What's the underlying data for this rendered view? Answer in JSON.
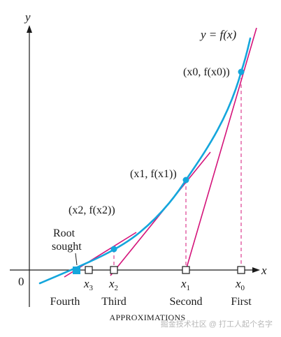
{
  "colors": {
    "curve": "#14a6dc",
    "tangent": "#d4147a",
    "dashed": "#d4147a",
    "axis": "#1a1a1a",
    "text": "#1a1a1a",
    "watermark": "#b8b8b8"
  },
  "labels": {
    "y_axis": "y",
    "x_axis": "x",
    "origin": "0",
    "curve_label": "y = f(x)",
    "root_sought": [
      "Root",
      "sought"
    ],
    "footer": "APPROXIMATIONS",
    "watermark": "掘金技术社区 @ 打工人起个名字"
  },
  "points": [
    {
      "id": "p0",
      "label": "(x0, f(x0))"
    },
    {
      "id": "p1",
      "label": "(x1, f(x1))"
    },
    {
      "id": "p2",
      "label": "(x2, f(x2))"
    }
  ],
  "x_ticks": [
    {
      "id": "x3",
      "label": "x3",
      "order": "Fourth"
    },
    {
      "id": "x2",
      "label": "x2",
      "order": "Third"
    },
    {
      "id": "x1",
      "label": "x1",
      "order": "Second"
    },
    {
      "id": "x0",
      "label": "x0",
      "order": "First"
    }
  ]
}
